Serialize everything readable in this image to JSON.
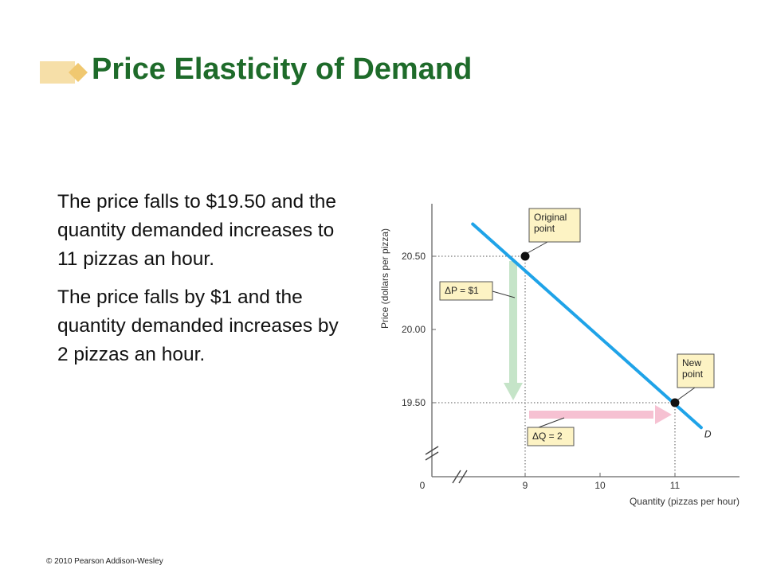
{
  "title": "Price Elasticity of Demand",
  "paragraphs": [
    "The price falls to $19.50 and the quantity demanded increases to 11 pizzas an hour.",
    "The price falls by $1 and the quantity demanded increases by 2 pizzas an hour."
  ],
  "footer": "© 2010 Pearson Addison-Wesley",
  "colors": {
    "title": "#1e6b2a",
    "title_decoration": "#f0c870",
    "demand_line": "#1fa3e8",
    "price_change_arrow": "#c5e4c8",
    "quantity_change_arrow": "#f6c1d2",
    "callout_fill": "#fdf3c4"
  },
  "chart_data": {
    "type": "line",
    "xlabel": "Quantity (pizzas per hour)",
    "ylabel": "Price (dollars per pizza)",
    "x_ticks": [
      {
        "value": 0,
        "label": "0"
      },
      {
        "value": 9,
        "label": "9"
      },
      {
        "value": 10,
        "label": "10"
      },
      {
        "value": 11,
        "label": "11"
      }
    ],
    "y_ticks": [
      {
        "value": 19.5,
        "label": "19.50"
      },
      {
        "value": 20.0,
        "label": "20.00"
      },
      {
        "value": 20.5,
        "label": "20.50"
      }
    ],
    "axis_breaks": [
      "x",
      "y"
    ],
    "series": [
      {
        "name": "D",
        "points": [
          {
            "x": 8.3,
            "y": 20.72
          },
          {
            "x": 11.35,
            "y": 19.33
          }
        ]
      }
    ],
    "points": [
      {
        "label": "Original point",
        "x": 9,
        "y": 20.5
      },
      {
        "label": "New point",
        "x": 11,
        "y": 19.5
      }
    ],
    "annotations": [
      {
        "text": "ΔP = $1",
        "from": {
          "x": 9,
          "y": 20.5
        },
        "to": {
          "x": 9,
          "y": 19.5
        }
      },
      {
        "text": "ΔQ = 2",
        "from": {
          "x": 9,
          "y": 19.5
        },
        "to": {
          "x": 11,
          "y": 19.5
        }
      }
    ]
  }
}
